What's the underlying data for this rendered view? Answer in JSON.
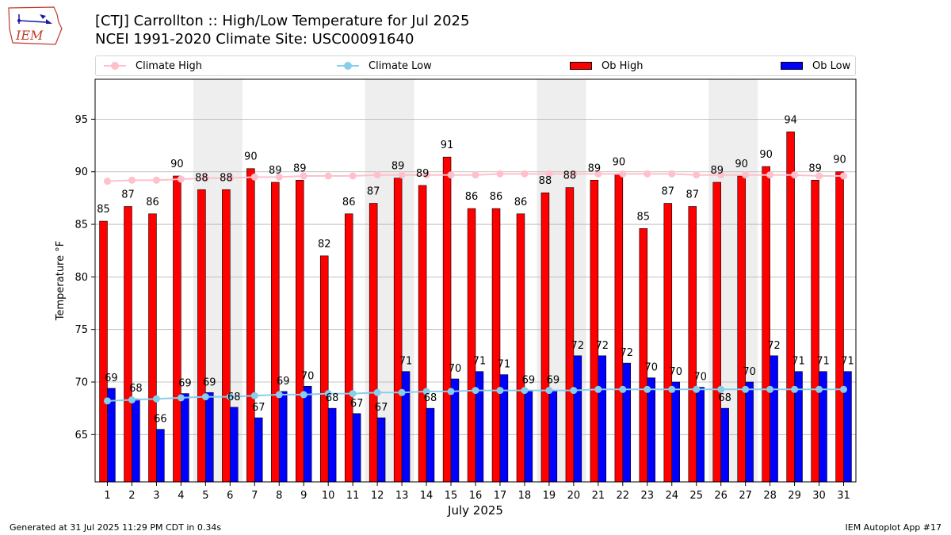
{
  "title": "[CTJ] Carrollton :: High/Low Temperature for Jul 2025",
  "subtitle": "NCEI 1991-2020 Climate Site: USC00091640",
  "logo_text": "IEM",
  "footer_left": "Generated at 31 Jul 2025 11:29 PM CDT in 0.34s",
  "footer_right": "IEM Autoplot App #17",
  "legend": {
    "climate_high": "Climate High",
    "climate_low": "Climate Low",
    "ob_high": "Ob High",
    "ob_low": "Ob Low"
  },
  "colors": {
    "ob_high": "#ff0000",
    "ob_low": "#0000ff",
    "climate_high": "#ffc0cb",
    "climate_low": "#87ceeb",
    "weekend_band": "#eeeeee",
    "grid": "#b0b0b0"
  },
  "chart_data": {
    "type": "bar",
    "xlabel": "July 2025",
    "ylabel": "Temperature °F",
    "ylim": [
      60.5,
      98.8
    ],
    "yticks": [
      65,
      70,
      75,
      80,
      85,
      90,
      95
    ],
    "grid": "horizontal",
    "legend_position": "top",
    "categories": [
      "1",
      "2",
      "3",
      "4",
      "5",
      "6",
      "7",
      "8",
      "9",
      "10",
      "11",
      "12",
      "13",
      "14",
      "15",
      "16",
      "17",
      "18",
      "19",
      "20",
      "21",
      "22",
      "23",
      "24",
      "25",
      "26",
      "27",
      "28",
      "29",
      "30",
      "31"
    ],
    "shaded_categories": [
      "5",
      "6",
      "12",
      "13",
      "19",
      "20",
      "26",
      "27"
    ],
    "series": [
      {
        "name": "Ob High",
        "kind": "bar",
        "values": [
          85.3,
          86.7,
          86.0,
          89.6,
          88.3,
          88.3,
          90.3,
          89.0,
          89.2,
          82.0,
          86.0,
          87.0,
          89.4,
          88.7,
          91.4,
          86.5,
          86.5,
          86.0,
          88.0,
          88.5,
          89.2,
          89.8,
          84.6,
          87.0,
          86.7,
          89.0,
          89.6,
          90.5,
          93.8,
          89.2,
          90.0
        ],
        "labels": [
          "85",
          "87",
          "86",
          "90",
          "88",
          "88",
          "90",
          "89",
          "89",
          "82",
          "86",
          "87",
          "89",
          "89",
          "91",
          "86",
          "86",
          "86",
          "88",
          "88",
          "89",
          "90",
          "85",
          "87",
          "87",
          "89",
          "90",
          "90",
          "94",
          "89",
          "90"
        ]
      },
      {
        "name": "Ob Low",
        "kind": "bar",
        "values": [
          69.4,
          68.4,
          65.5,
          68.9,
          69.0,
          67.6,
          66.6,
          69.1,
          69.6,
          67.5,
          67.0,
          66.6,
          71.0,
          67.5,
          70.3,
          71.0,
          70.7,
          69.2,
          69.2,
          72.5,
          72.5,
          71.8,
          70.4,
          70.0,
          69.5,
          67.5,
          70.0,
          72.5,
          71.0,
          71.0,
          71.0
        ],
        "labels": [
          "69",
          "68",
          "66",
          "69",
          "69",
          "68",
          "67",
          "69",
          "70",
          "68",
          "67",
          "67",
          "71",
          "68",
          "70",
          "71",
          "71",
          "69",
          "69",
          "72",
          "72",
          "72",
          "70",
          "70",
          "70",
          "68",
          "70",
          "72",
          "71",
          "71",
          "71"
        ]
      },
      {
        "name": "Climate High",
        "kind": "line",
        "values": [
          89.1,
          89.2,
          89.2,
          89.3,
          89.4,
          89.4,
          89.5,
          89.5,
          89.6,
          89.6,
          89.6,
          89.7,
          89.7,
          89.7,
          89.7,
          89.7,
          89.8,
          89.8,
          89.8,
          89.8,
          89.8,
          89.8,
          89.8,
          89.8,
          89.7,
          89.7,
          89.7,
          89.7,
          89.7,
          89.6,
          89.6
        ]
      },
      {
        "name": "Climate Low",
        "kind": "line",
        "values": [
          68.2,
          68.3,
          68.4,
          68.5,
          68.6,
          68.6,
          68.7,
          68.8,
          68.8,
          68.9,
          68.9,
          69.0,
          69.0,
          69.1,
          69.1,
          69.2,
          69.2,
          69.2,
          69.2,
          69.2,
          69.3,
          69.3,
          69.3,
          69.3,
          69.3,
          69.3,
          69.3,
          69.3,
          69.3,
          69.3,
          69.3
        ]
      }
    ]
  }
}
